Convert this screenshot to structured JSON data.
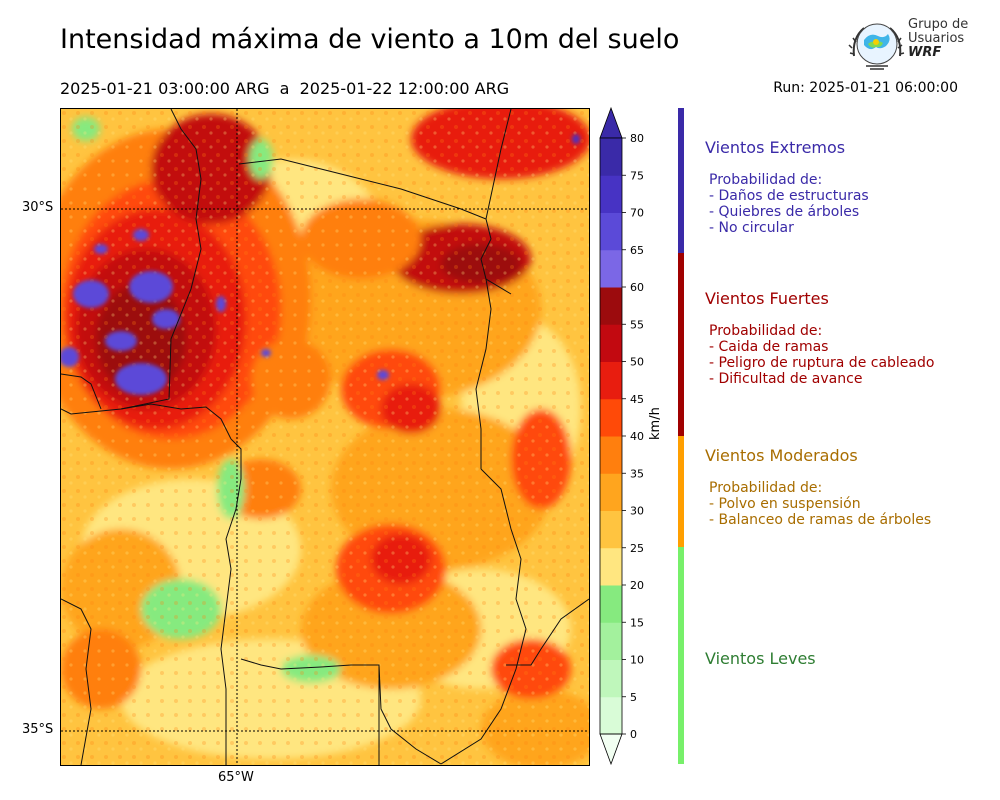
{
  "header": {
    "title": "Intensidad máxima de viento a 10m del suelo",
    "period": "2025-01-21 03:00:00 ARG  a  2025-01-22 12:00:00 ARG",
    "run": "Run: 2025-01-21 06:00:00"
  },
  "logo": {
    "line1": "Grupo de",
    "line2": "Usuarios",
    "line3": "WRF"
  },
  "map": {
    "lat_labels": [
      "30°S",
      "35°S"
    ],
    "lon_labels": [
      "65°W"
    ]
  },
  "colorbar": {
    "unit": "km/h",
    "ticks": [
      "0",
      "5",
      "10",
      "15",
      "20",
      "25",
      "30",
      "35",
      "40",
      "45",
      "50",
      "55",
      "60",
      "65",
      "70",
      "75",
      "80"
    ],
    "colors": [
      "#f2fff2",
      "#d9fcd7",
      "#bff7bb",
      "#a3f19d",
      "#86ea7f",
      "#ffe680",
      "#ffc440",
      "#ffa51e",
      "#ff7f0e",
      "#ff4a08",
      "#e81d0f",
      "#c20910",
      "#9c0b0d",
      "#7b67e6",
      "#5b4ad8",
      "#4733c4",
      "#3a2aa8"
    ],
    "extend": "both"
  },
  "categories": [
    {
      "title": "Vientos Extremos",
      "color": "#3a2aa8",
      "text_color": "#3a2aa8",
      "lines": [
        "Probabilidad de:",
        "- Daños de estructuras",
        "- Quiebres de árboles",
        "- No circular"
      ]
    },
    {
      "title": "Vientos Fuertes",
      "color": "#a00000",
      "text_color": "#a00000",
      "lines": [
        "Probabilidad de:",
        "- Caida de ramas",
        "- Peligro de ruptura de cableado",
        "- Dificultad de avance"
      ]
    },
    {
      "title": "Vientos Moderados",
      "color": "#ff9f00",
      "text_color": "#a86d00",
      "lines": [
        "Probabilidad de:",
        "- Polvo en suspensión",
        "- Balanceo de ramas de árboles"
      ]
    },
    {
      "title": "Vientos Leves",
      "color": "#77f06a",
      "text_color": "#2e7d32",
      "lines": []
    }
  ]
}
